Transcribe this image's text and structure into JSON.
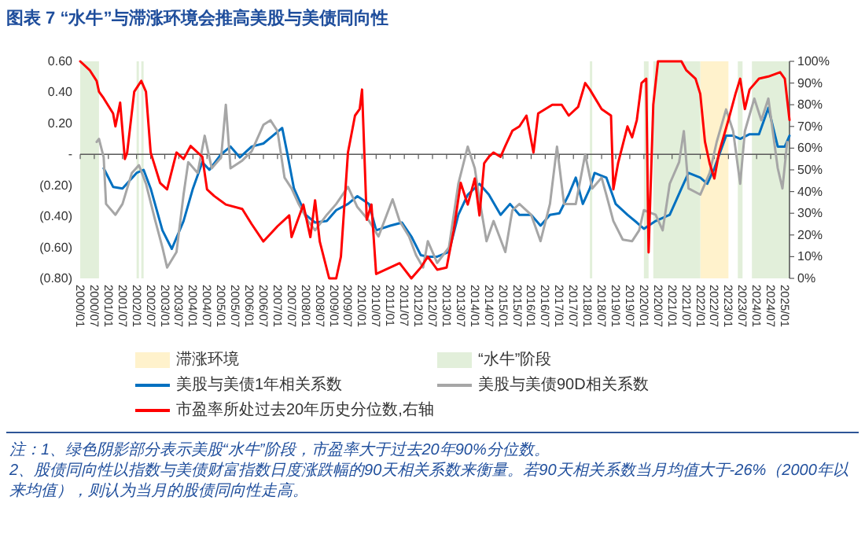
{
  "chart_data": {
    "type": "line",
    "title": "图表 7  “水牛”与滞涨环境会推高美股与美债同向性",
    "xlim": [
      "2000-01",
      "2025-03"
    ],
    "xticks": [
      {
        "value": "2000-01",
        "label": "2000/01"
      },
      {
        "value": "2000-07",
        "label": "2000/07"
      },
      {
        "value": "2001-01",
        "label": "2001/01"
      },
      {
        "value": "2001-07",
        "label": "2001/07"
      },
      {
        "value": "2002-01",
        "label": "2002/01"
      },
      {
        "value": "2002-07",
        "label": "2002/07"
      },
      {
        "value": "2003-01",
        "label": "2003/01"
      },
      {
        "value": "2003-07",
        "label": "2003/07"
      },
      {
        "value": "2004-01",
        "label": "2004/01"
      },
      {
        "value": "2004-07",
        "label": "2004/07"
      },
      {
        "value": "2005-01",
        "label": "2005/01"
      },
      {
        "value": "2005-07",
        "label": "2005/07"
      },
      {
        "value": "2006-01",
        "label": "2006/01"
      },
      {
        "value": "2006-07",
        "label": "2006/07"
      },
      {
        "value": "2007-01",
        "label": "2007/01"
      },
      {
        "value": "2007-07",
        "label": "2007/07"
      },
      {
        "value": "2008-01",
        "label": "2008/01"
      },
      {
        "value": "2008-07",
        "label": "2008/07"
      },
      {
        "value": "2009-01",
        "label": "2009/01"
      },
      {
        "value": "2009-07",
        "label": "2009/07"
      },
      {
        "value": "2010-01",
        "label": "2010/01"
      },
      {
        "value": "2010-07",
        "label": "2010/07"
      },
      {
        "value": "2011-01",
        "label": "2011/01"
      },
      {
        "value": "2011-07",
        "label": "2011/07"
      },
      {
        "value": "2012-01",
        "label": "2012/01"
      },
      {
        "value": "2012-07",
        "label": "2012/07"
      },
      {
        "value": "2013-01",
        "label": "2013/01"
      },
      {
        "value": "2013-07",
        "label": "2013/07"
      },
      {
        "value": "2014-01",
        "label": "2014/01"
      },
      {
        "value": "2014-07",
        "label": "2014/07"
      },
      {
        "value": "2015-01",
        "label": "2015/01"
      },
      {
        "value": "2015-07",
        "label": "2015/07"
      },
      {
        "value": "2016-01",
        "label": "2016/01"
      },
      {
        "value": "2016-07",
        "label": "2016/07"
      },
      {
        "value": "2017-01",
        "label": "2017/01"
      },
      {
        "value": "2017-07",
        "label": "2017/07"
      },
      {
        "value": "2018-01",
        "label": "2018/01"
      },
      {
        "value": "2018-07",
        "label": "2018/07"
      },
      {
        "value": "2019-01",
        "label": "2019/01"
      },
      {
        "value": "2019-07",
        "label": "2019/07"
      },
      {
        "value": "2020-01",
        "label": "2020/01"
      },
      {
        "value": "2020-07",
        "label": "2020/07"
      },
      {
        "value": "2021-01",
        "label": "2021/01"
      },
      {
        "value": "2021-07",
        "label": "2021/07"
      },
      {
        "value": "2022-01",
        "label": "2022/01"
      },
      {
        "value": "2022-07",
        "label": "2022/07"
      },
      {
        "value": "2023-01",
        "label": "2023/01"
      },
      {
        "value": "2023-07",
        "label": "2023/07"
      },
      {
        "value": "2024-01",
        "label": "2024/01"
      },
      {
        "value": "2024-07",
        "label": "2024/07"
      },
      {
        "value": "2025-01",
        "label": "2025/01"
      }
    ],
    "ylim": [
      -0.8,
      0.6
    ],
    "yticks": [
      {
        "value": -0.8,
        "label": "(0.80)"
      },
      {
        "value": -0.6,
        "label": "(0.60)"
      },
      {
        "value": -0.4,
        "label": "(0.40)"
      },
      {
        "value": -0.2,
        "label": "(0.20)"
      },
      {
        "value": 0,
        "label": "-"
      },
      {
        "value": 0.2,
        "label": "0.20"
      },
      {
        "value": 0.4,
        "label": "0.40"
      },
      {
        "value": 0.6,
        "label": "0.60"
      }
    ],
    "y2lim": [
      0,
      100
    ],
    "y2ticks": [
      {
        "value": 0,
        "label": "0%"
      },
      {
        "value": 10,
        "label": "10%"
      },
      {
        "value": 20,
        "label": "20%"
      },
      {
        "value": 30,
        "label": "30%"
      },
      {
        "value": 40,
        "label": "40%"
      },
      {
        "value": 50,
        "label": "50%"
      },
      {
        "value": 60,
        "label": "60%"
      },
      {
        "value": 70,
        "label": "70%"
      },
      {
        "value": 80,
        "label": "80%"
      },
      {
        "value": 90,
        "label": "90%"
      },
      {
        "value": 100,
        "label": "100%"
      }
    ],
    "bands": [
      {
        "axis": "x",
        "from": "2022-01",
        "to": "2023-01",
        "label": "滞涨环境",
        "color": "#fff2cc"
      },
      {
        "axis": "x",
        "from": "2000-01",
        "to": "2000-09",
        "label": "“水牛”阶段",
        "color": "#e2efda"
      },
      {
        "axis": "x",
        "from": "2002-01",
        "to": "2002-02",
        "color": "#e2efda"
      },
      {
        "axis": "x",
        "from": "2002-03",
        "to": "2002-04",
        "color": "#e2efda"
      },
      {
        "axis": "x",
        "from": "2018-02",
        "to": "2018-03",
        "color": "#e2efda"
      },
      {
        "axis": "x",
        "from": "2020-01",
        "to": "2020-03",
        "color": "#e2efda"
      },
      {
        "axis": "x",
        "from": "2020-05",
        "to": "2022-01",
        "color": "#e2efda"
      },
      {
        "axis": "x",
        "from": "2023-05",
        "to": "2023-07",
        "color": "#e2efda"
      },
      {
        "axis": "x",
        "from": "2023-11",
        "to": "2025-03",
        "color": "#e2efda"
      }
    ],
    "legend": "bottom",
    "series": [
      {
        "name": "美股与美债1年相关系数",
        "color": "#0070c0",
        "x": [
          "2000-11",
          "2001-03",
          "2001-07",
          "2002-01",
          "2002-04",
          "2002-07",
          "2002-12",
          "2003-04",
          "2003-09",
          "2004-01",
          "2004-05",
          "2004-08",
          "2005-01",
          "2005-05",
          "2005-09",
          "2006-02",
          "2006-07",
          "2006-11",
          "2007-03",
          "2007-05",
          "2007-08",
          "2008-01",
          "2008-05",
          "2008-10",
          "2009-02",
          "2009-07",
          "2009-11",
          "2010-04",
          "2010-07",
          "2011-01",
          "2011-06",
          "2011-10",
          "2012-02",
          "2012-05",
          "2012-09",
          "2013-02",
          "2013-06",
          "2013-10",
          "2014-03",
          "2014-07",
          "2014-12",
          "2015-04",
          "2015-08",
          "2016-01",
          "2016-05",
          "2016-09",
          "2017-01",
          "2017-05",
          "2017-08",
          "2017-11",
          "2018-02",
          "2018-04",
          "2018-09",
          "2019-01",
          "2019-06",
          "2019-10",
          "2020-01",
          "2020-06",
          "2020-12",
          "2021-05",
          "2021-08",
          "2022-01",
          "2022-04",
          "2022-07",
          "2022-12",
          "2023-03",
          "2023-06",
          "2023-10",
          "2024-02",
          "2024-06",
          "2024-10",
          "2025-01",
          "2025-03"
        ],
        "values": [
          -0.09,
          -0.21,
          -0.22,
          -0.12,
          -0.1,
          -0.22,
          -0.49,
          -0.61,
          -0.43,
          -0.22,
          -0.05,
          -0.1,
          0.0,
          0.05,
          -0.02,
          0.05,
          0.07,
          0.12,
          0.17,
          0.02,
          -0.22,
          -0.39,
          -0.44,
          -0.43,
          -0.36,
          -0.32,
          -0.27,
          -0.32,
          -0.49,
          -0.46,
          -0.44,
          -0.53,
          -0.65,
          -0.66,
          -0.66,
          -0.63,
          -0.39,
          -0.26,
          -0.19,
          -0.26,
          -0.39,
          -0.32,
          -0.39,
          -0.39,
          -0.46,
          -0.39,
          -0.38,
          -0.26,
          -0.15,
          -0.32,
          -0.22,
          -0.12,
          -0.15,
          -0.32,
          -0.39,
          -0.44,
          -0.48,
          -0.43,
          -0.39,
          -0.22,
          -0.12,
          -0.15,
          -0.19,
          -0.09,
          0.12,
          0.12,
          0.1,
          0.13,
          0.13,
          0.3,
          0.05,
          0.05,
          0.12
        ]
      },
      {
        "name": "美股与美债90D相关系数",
        "color": "#a6a6a6",
        "x": [
          "2000-08",
          "2000-09",
          "2000-11",
          "2000-12",
          "2001-04",
          "2001-07",
          "2001-11",
          "2002-02",
          "2002-05",
          "2002-09",
          "2002-12",
          "2003-02",
          "2003-06",
          "2003-09",
          "2003-11",
          "2004-03",
          "2004-06",
          "2004-09",
          "2005-01",
          "2005-03",
          "2005-05",
          "2005-10",
          "2006-02",
          "2006-07",
          "2006-10",
          "2007-01",
          "2007-04",
          "2007-07",
          "2007-10",
          "2008-02",
          "2008-05",
          "2008-10",
          "2009-02",
          "2009-07",
          "2009-11",
          "2010-04",
          "2010-08",
          "2011-02",
          "2011-05",
          "2011-09",
          "2011-12",
          "2012-03",
          "2012-05",
          "2012-09",
          "2013-02",
          "2013-06",
          "2013-10",
          "2014-01",
          "2014-03",
          "2014-06",
          "2014-09",
          "2015-02",
          "2015-05",
          "2015-08",
          "2016-01",
          "2016-05",
          "2016-09",
          "2016-12",
          "2017-03",
          "2017-08",
          "2017-12",
          "2018-03",
          "2018-07",
          "2018-09",
          "2018-12",
          "2019-04",
          "2019-08",
          "2019-11",
          "2020-01",
          "2020-06",
          "2020-09",
          "2020-12",
          "2021-04",
          "2021-06",
          "2021-08",
          "2022-01",
          "2022-05",
          "2022-08",
          "2022-12",
          "2023-03",
          "2023-06",
          "2023-08",
          "2023-12",
          "2024-03",
          "2024-06",
          "2024-10",
          "2024-12",
          "2025-02"
        ],
        "values": [
          0.08,
          0.1,
          -0.02,
          -0.32,
          -0.39,
          -0.32,
          -0.12,
          -0.07,
          -0.19,
          -0.43,
          -0.6,
          -0.73,
          -0.63,
          -0.26,
          -0.05,
          -0.12,
          0.12,
          -0.09,
          -0.02,
          0.32,
          -0.09,
          -0.04,
          0.02,
          0.19,
          0.22,
          0.15,
          -0.15,
          -0.22,
          -0.32,
          -0.43,
          -0.49,
          -0.39,
          -0.32,
          -0.21,
          -0.34,
          -0.43,
          -0.53,
          -0.29,
          -0.43,
          -0.53,
          -0.65,
          -0.73,
          -0.56,
          -0.7,
          -0.6,
          -0.19,
          0.05,
          -0.09,
          -0.29,
          -0.56,
          -0.43,
          -0.63,
          -0.36,
          -0.32,
          -0.39,
          -0.56,
          -0.32,
          0.05,
          -0.32,
          -0.32,
          0.0,
          -0.22,
          -0.15,
          -0.26,
          -0.43,
          -0.55,
          -0.56,
          -0.49,
          -0.36,
          -0.39,
          -0.49,
          -0.19,
          -0.05,
          0.15,
          -0.22,
          -0.26,
          -0.12,
          0.08,
          0.29,
          0.15,
          -0.19,
          0.15,
          0.36,
          0.22,
          0.36,
          -0.09,
          -0.22,
          0.08
        ]
      },
      {
        "name": "市盈率所处过去20年历史分位数,右轴",
        "color": "#ff0000",
        "axis": "y2",
        "x": [
          "2000-01",
          "2000-05",
          "2000-08",
          "2000-09",
          "2000-11",
          "2001-03",
          "2001-04",
          "2001-06",
          "2001-08",
          "2001-09",
          "2001-12",
          "2002-03",
          "2002-05",
          "2002-07",
          "2002-11",
          "2003-02",
          "2003-06",
          "2003-09",
          "2003-12",
          "2004-05",
          "2004-07",
          "2004-10",
          "2005-03",
          "2005-10",
          "2006-02",
          "2006-07",
          "2007-01",
          "2007-06",
          "2007-07",
          "2007-12",
          "2008-03",
          "2008-05",
          "2008-07",
          "2008-11",
          "2009-02",
          "2009-04",
          "2009-07",
          "2009-10",
          "2009-12",
          "2010-01",
          "2010-03",
          "2010-05",
          "2010-07",
          "2011-01",
          "2011-05",
          "2011-10",
          "2012-02",
          "2012-05",
          "2012-09",
          "2013-01",
          "2013-04",
          "2013-07",
          "2013-10",
          "2014-01",
          "2014-03",
          "2014-05",
          "2014-07",
          "2014-09",
          "2014-12",
          "2015-02",
          "2015-05",
          "2015-08",
          "2015-11",
          "2016-02",
          "2016-04",
          "2016-10",
          "2017-02",
          "2017-05",
          "2017-09",
          "2017-12",
          "2018-02",
          "2018-07",
          "2018-11",
          "2018-12",
          "2019-02",
          "2019-06",
          "2019-08",
          "2019-10",
          "2019-12",
          "2020-02",
          "2020-03",
          "2020-05",
          "2020-07",
          "2020-12",
          "2021-05",
          "2021-07",
          "2021-11",
          "2022-01",
          "2022-03",
          "2022-05",
          "2022-07",
          "2022-09",
          "2023-01",
          "2023-04",
          "2023-06",
          "2023-08",
          "2023-10",
          "2024-02",
          "2024-06",
          "2024-11",
          "2025-01",
          "2025-03"
        ],
        "values": [
          100,
          96,
          91,
          86,
          83,
          76,
          70,
          81,
          55,
          58,
          86,
          91,
          86,
          58,
          44,
          41,
          58,
          55,
          61,
          56,
          41,
          38,
          34,
          32,
          25,
          17,
          24,
          29,
          19,
          34,
          19,
          36,
          17,
          0,
          0,
          10,
          58,
          75,
          78,
          87,
          27,
          34,
          2,
          5,
          7,
          0,
          5,
          10,
          4,
          5,
          22,
          44,
          34,
          46,
          29,
          53,
          56,
          58,
          56,
          61,
          68,
          70,
          75,
          58,
          76,
          80,
          80,
          75,
          79,
          90,
          87,
          78,
          75,
          41,
          53,
          70,
          65,
          73,
          90,
          92,
          12,
          80,
          100,
          100,
          100,
          96,
          92,
          85,
          63,
          53,
          46,
          58,
          73,
          85,
          92,
          78,
          87,
          92,
          93,
          95,
          92,
          73
        ]
      }
    ],
    "annotations": [
      "注：1、绿色阴影部分表示美股“水牛”阶段，市盈率大于过去20年90%分位数。",
      "2、股债同向性以指数与美债财富指数日度涨跌幅的90天相关系数来衡量。若90天相关系数当月均值大于-26%（2000年以来均值），则认为当月的股债同向性走高。"
    ]
  }
}
